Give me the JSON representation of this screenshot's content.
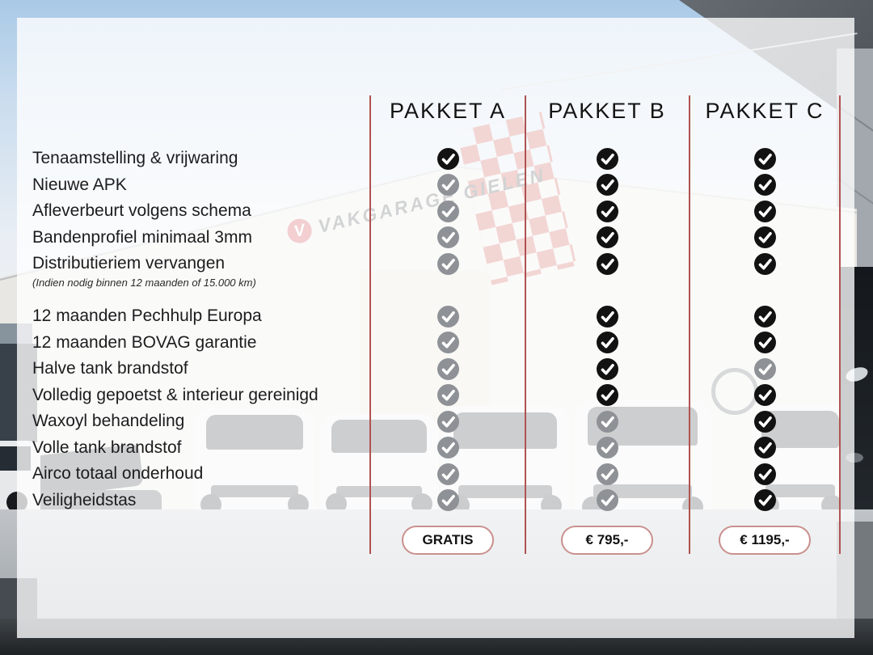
{
  "table": {
    "packages": [
      {
        "label": "PAKKET A",
        "price": "GRATIS"
      },
      {
        "label": "PAKKET B",
        "price": "€ 795,-"
      },
      {
        "label": "PAKKET C",
        "price": "€ 1195,-"
      }
    ],
    "features": [
      {
        "label": "Tenaamstelling & vrijwaring",
        "checks": [
          "black",
          "black",
          "black"
        ]
      },
      {
        "label": "Nieuwe APK",
        "checks": [
          "gray",
          "black",
          "black"
        ]
      },
      {
        "label": "Afleverbeurt volgens schema",
        "checks": [
          "gray",
          "black",
          "black"
        ]
      },
      {
        "label": "Bandenprofiel minimaal 3mm",
        "checks": [
          "gray",
          "black",
          "black"
        ]
      },
      {
        "label": "Distributieriem vervangen",
        "note": "(Indien nodig binnen 12 maanden of 15.000 km)",
        "checks": [
          "gray",
          "black",
          "black"
        ]
      },
      {
        "label": "12 maanden Pechhulp Europa",
        "checks": [
          "gray",
          "black",
          "black"
        ]
      },
      {
        "label": "12 maanden BOVAG garantie",
        "checks": [
          "gray",
          "black",
          "black"
        ]
      },
      {
        "label": "Halve tank brandstof",
        "checks": [
          "gray",
          "black",
          "gray"
        ]
      },
      {
        "label": "Volledig gepoetst & interieur gereinigd",
        "checks": [
          "gray",
          "black",
          "black"
        ]
      },
      {
        "label": "Waxoyl behandeling",
        "checks": [
          "gray",
          "gray",
          "black"
        ]
      },
      {
        "label": "Volle tank brandstof",
        "checks": [
          "gray",
          "gray",
          "black"
        ]
      },
      {
        "label": "Airco totaal onderhoud",
        "checks": [
          "gray",
          "gray",
          "black"
        ]
      },
      {
        "label": "Veiligheidstas",
        "checks": [
          "gray",
          "gray",
          "black"
        ]
      }
    ]
  },
  "background": {
    "sign_text": "VAKGARAGE GIELEN"
  },
  "icons": {
    "included": "check-circle-icon"
  },
  "colors": {
    "check_on": "#121212",
    "check_off": "#8e9296",
    "divider_red": "#b05252",
    "price_border": "#c9908e",
    "price_text": "#111111",
    "feature_text": "#1c1c1e",
    "header_text": "#131313"
  }
}
